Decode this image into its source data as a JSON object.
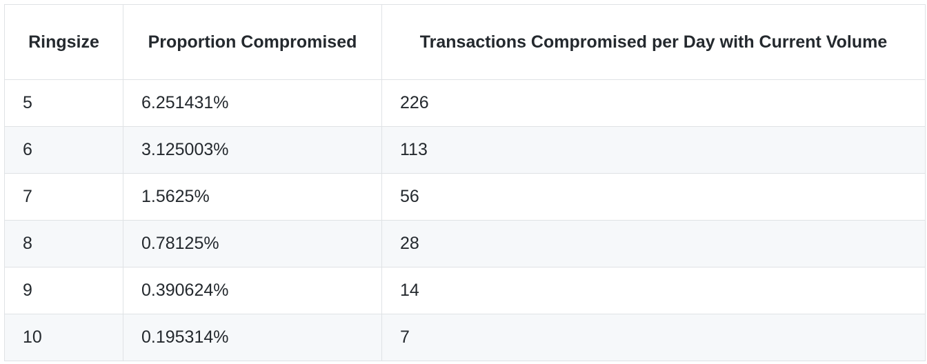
{
  "table": {
    "headers": [
      "Ringsize",
      "Proportion Compromised",
      "Transactions Compromised per Day with Current Volume"
    ],
    "rows": [
      [
        "5",
        "6.251431%",
        "226"
      ],
      [
        "6",
        "3.125003%",
        "113"
      ],
      [
        "7",
        "1.5625%",
        "56"
      ],
      [
        "8",
        "0.78125%",
        "28"
      ],
      [
        "9",
        "0.390624%",
        "14"
      ],
      [
        "10",
        "0.195314%",
        "7"
      ]
    ]
  },
  "colors": {
    "border": "#dfe2e5",
    "stripe": "#f6f8fa",
    "text": "#24292e"
  }
}
